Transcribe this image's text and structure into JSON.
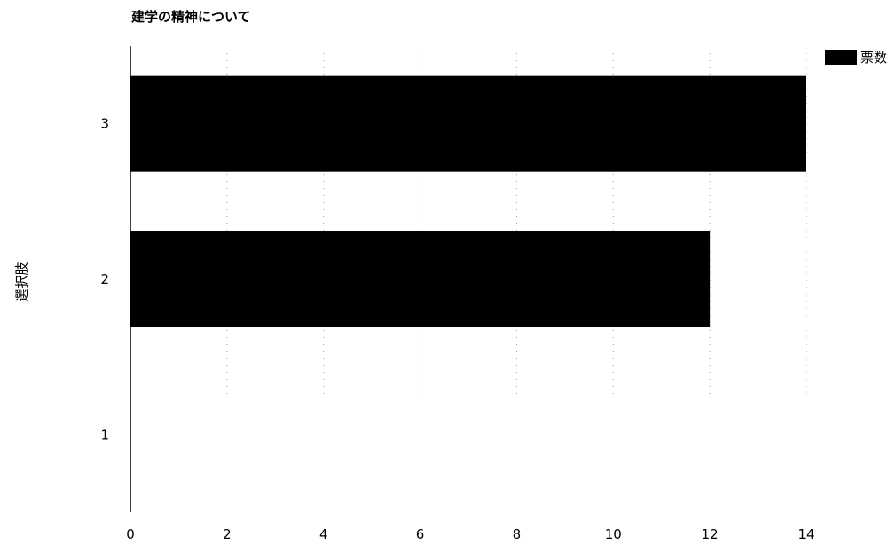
{
  "chart_data": {
    "type": "bar",
    "orientation": "horizontal",
    "title": "建学の精神について",
    "ylabel": "選択肢",
    "xlabel": "",
    "categories": [
      "1",
      "2",
      "3"
    ],
    "series": [
      {
        "name": "票数",
        "values": [
          0,
          12,
          14
        ],
        "color": "#000000"
      }
    ],
    "xlim": [
      0,
      14
    ],
    "xticks": [
      0,
      2,
      4,
      6,
      8,
      10,
      12,
      14
    ],
    "grid": "vertical dotted",
    "legend_position": "top-right"
  }
}
